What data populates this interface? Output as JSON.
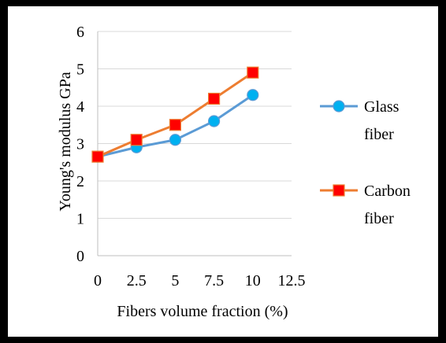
{
  "chart_data": {
    "type": "line",
    "xlabel": "Fibers volume fraction (%)",
    "ylabel": "Young's modulus   GPa",
    "xlim": [
      0,
      12.5
    ],
    "ylim": [
      0,
      6
    ],
    "x_ticks": [
      "0",
      "2.5",
      "5",
      "7.5",
      "10",
      "12.5"
    ],
    "y_ticks": [
      "0",
      "1",
      "2",
      "3",
      "4",
      "5",
      "6"
    ],
    "grid": "horizontal",
    "legend_position": "right",
    "x": [
      0,
      2.5,
      5,
      7.5,
      10
    ],
    "series": [
      {
        "name_lines": [
          "Glass",
          "fiber"
        ],
        "values": [
          2.65,
          2.9,
          3.1,
          3.6,
          4.3
        ],
        "color": "#5b9bd5",
        "marker": "circle",
        "marker_color": "#00b0f0"
      },
      {
        "name_lines": [
          "Carbon",
          "fiber"
        ],
        "values": [
          2.65,
          3.1,
          3.5,
          4.2,
          4.9
        ],
        "color": "#ed7d31",
        "marker": "square",
        "marker_color": "#ff0000"
      }
    ]
  }
}
